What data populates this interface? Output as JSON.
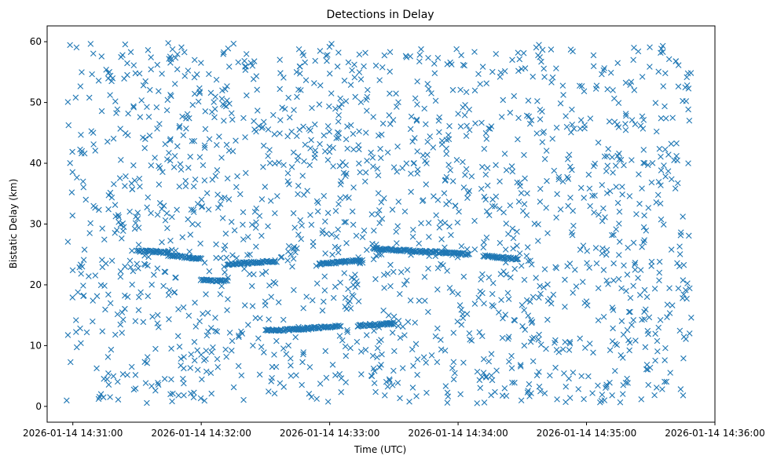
{
  "chart_data": {
    "type": "scatter",
    "title": "Detections in Delay",
    "xlabel": "Time (UTC)",
    "ylabel": "Bistatic Delay (km)",
    "marker": "x",
    "color": "#1f77b4",
    "grid": false,
    "legend": "none",
    "xlim": [
      "2026-01-14 14:30:48",
      "2026-01-14 14:36:00"
    ],
    "ylim": [
      -2.6,
      62.6
    ],
    "x_ticks": [
      "2026-01-14 14:31:00",
      "2026-01-14 14:32:00",
      "2026-01-14 14:33:00",
      "2026-01-14 14:34:00",
      "2026-01-14 14:35:00",
      "2026-01-14 14:36:00"
    ],
    "y_ticks": [
      0,
      10,
      20,
      30,
      40,
      50,
      60
    ],
    "x_range_shown": [
      "2026-01-14 14:30:57",
      "2026-01-14 14:35:49"
    ],
    "clutter_detections_approx": 1700,
    "tracks": [
      {
        "x": [
          "2026-01-14 14:31:30",
          "2026-01-14 14:31:45"
        ],
        "y": [
          25.6,
          25.3
        ]
      },
      {
        "x": [
          "2026-01-14 14:31:45",
          "2026-01-14 14:32:00"
        ],
        "y": [
          24.8,
          24.3
        ]
      },
      {
        "x": [
          "2026-01-14 14:32:00",
          "2026-01-14 14:32:12"
        ],
        "y": [
          20.8,
          20.6
        ]
      },
      {
        "x": [
          "2026-01-14 14:32:12",
          "2026-01-14 14:32:35"
        ],
        "y": [
          23.4,
          23.9
        ]
      },
      {
        "x": [
          "2026-01-14 14:32:30",
          "2026-01-14 14:33:05"
        ],
        "y": [
          12.4,
          13.2
        ]
      },
      {
        "x": [
          "2026-01-14 14:32:55",
          "2026-01-14 14:33:15"
        ],
        "y": [
          23.4,
          24.1
        ]
      },
      {
        "x": [
          "2026-01-14 14:33:13",
          "2026-01-14 14:33:30"
        ],
        "y": [
          13.3,
          13.6
        ]
      },
      {
        "x": [
          "2026-01-14 14:33:20",
          "2026-01-14 14:33:45"
        ],
        "y": [
          26.0,
          25.4
        ]
      },
      {
        "x": [
          "2026-01-14 14:33:45",
          "2026-01-14 14:34:05"
        ],
        "y": [
          25.5,
          25.0
        ]
      },
      {
        "x": [
          "2026-01-14 14:34:12",
          "2026-01-14 14:34:28"
        ],
        "y": [
          24.8,
          24.2
        ]
      }
    ]
  }
}
